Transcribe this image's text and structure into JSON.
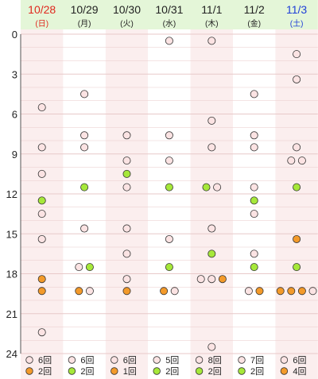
{
  "colors": {
    "header_green": "#e4f6d8",
    "col_pink": "#fbeeee",
    "col_white": "#ffffff",
    "grid_line": "#e8c9c9",
    "axis_text": "#222222",
    "day_text": "#222222",
    "sunday_text": "#e0281e",
    "saturday_text": "#1e3ed8",
    "dot_pink": "#fbe3e3",
    "dot_green": "#a6e83a",
    "dot_orange": "#f39a2a",
    "dot_stroke": "#333333"
  },
  "chart_data": {
    "type": "scatter",
    "ylim": [
      0,
      24
    ],
    "yticks": [
      "0",
      "3",
      "6",
      "9",
      "12",
      "15",
      "18",
      "21",
      "24"
    ],
    "days": [
      {
        "date": "10/28",
        "weekday": "(日)",
        "kind": "sun"
      },
      {
        "date": "10/29",
        "weekday": "(月)",
        "kind": "wd"
      },
      {
        "date": "10/30",
        "weekday": "(火)",
        "kind": "wd"
      },
      {
        "date": "10/31",
        "weekday": "(水)",
        "kind": "wd"
      },
      {
        "date": "11/1",
        "weekday": "(木)",
        "kind": "wd"
      },
      {
        "date": "11/2",
        "weekday": "(金)",
        "kind": "wd"
      },
      {
        "date": "11/3",
        "weekday": "(土)",
        "kind": "sat"
      }
    ],
    "events": [
      [
        {
          "h": 5.5,
          "t": "p"
        },
        {
          "h": 8.5,
          "t": "p"
        },
        {
          "h": 10.5,
          "t": "p"
        },
        {
          "h": 12.5,
          "t": "g"
        },
        {
          "h": 13.5,
          "t": "p"
        },
        {
          "h": 15.4,
          "t": "p"
        },
        {
          "h": 18.4,
          "t": "o"
        },
        {
          "h": 19.3,
          "t": "o"
        },
        {
          "h": 22.4,
          "t": "p"
        }
      ],
      [
        {
          "h": 4.5,
          "t": "p"
        },
        {
          "h": 7.6,
          "t": "p"
        },
        {
          "h": 8.5,
          "t": "p"
        },
        {
          "h": 11.5,
          "t": "g"
        },
        {
          "h": 14.6,
          "t": "p"
        },
        {
          "h": 17.5,
          "t": "p",
          "o": -1
        },
        {
          "h": 17.5,
          "t": "g",
          "o": 1
        },
        {
          "h": 19.3,
          "t": "o",
          "o": -1
        },
        {
          "h": 19.3,
          "t": "p",
          "o": 1
        }
      ],
      [
        {
          "h": 7.6,
          "t": "p"
        },
        {
          "h": 9.5,
          "t": "p"
        },
        {
          "h": 10.5,
          "t": "g"
        },
        {
          "h": 11.5,
          "t": "p"
        },
        {
          "h": 14.6,
          "t": "p"
        },
        {
          "h": 16.5,
          "t": "p"
        },
        {
          "h": 18.4,
          "t": "p"
        },
        {
          "h": 19.3,
          "t": "o"
        }
      ],
      [
        {
          "h": 0.5,
          "t": "p"
        },
        {
          "h": 7.6,
          "t": "p"
        },
        {
          "h": 9.5,
          "t": "p"
        },
        {
          "h": 11.5,
          "t": "g"
        },
        {
          "h": 15.4,
          "t": "p"
        },
        {
          "h": 17.5,
          "t": "g"
        },
        {
          "h": 19.3,
          "t": "o",
          "o": -1
        },
        {
          "h": 19.3,
          "t": "p",
          "o": 1
        }
      ],
      [
        {
          "h": 0.5,
          "t": "p"
        },
        {
          "h": 6.5,
          "t": "p"
        },
        {
          "h": 8.5,
          "t": "p"
        },
        {
          "h": 11.5,
          "t": "g",
          "o": -1
        },
        {
          "h": 11.5,
          "t": "p",
          "o": 1
        },
        {
          "h": 14.6,
          "t": "p"
        },
        {
          "h": 16.5,
          "t": "g"
        },
        {
          "h": 18.4,
          "t": "p",
          "o": -2
        },
        {
          "h": 18.4,
          "t": "p",
          "o": 0
        },
        {
          "h": 18.4,
          "t": "o",
          "o": 2
        },
        {
          "h": 23.5,
          "t": "p"
        }
      ],
      [
        {
          "h": 4.5,
          "t": "p"
        },
        {
          "h": 7.6,
          "t": "p"
        },
        {
          "h": 8.5,
          "t": "p"
        },
        {
          "h": 11.5,
          "t": "p"
        },
        {
          "h": 12.5,
          "t": "g"
        },
        {
          "h": 13.5,
          "t": "p"
        },
        {
          "h": 16.5,
          "t": "p"
        },
        {
          "h": 17.5,
          "t": "g"
        },
        {
          "h": 19.3,
          "t": "p",
          "o": -1
        },
        {
          "h": 19.3,
          "t": "o",
          "o": 1
        }
      ],
      [
        {
          "h": 1.5,
          "t": "p"
        },
        {
          "h": 3.4,
          "t": "p"
        },
        {
          "h": 8.5,
          "t": "p"
        },
        {
          "h": 9.5,
          "t": "p",
          "o": -1
        },
        {
          "h": 9.5,
          "t": "p",
          "o": 1
        },
        {
          "h": 11.5,
          "t": "g"
        },
        {
          "h": 15.4,
          "t": "o"
        },
        {
          "h": 17.5,
          "t": "g"
        },
        {
          "h": 19.3,
          "t": "o",
          "o": -3
        },
        {
          "h": 19.3,
          "t": "o",
          "o": -1
        },
        {
          "h": 19.3,
          "t": "o",
          "o": 1
        },
        {
          "h": 19.3,
          "t": "p",
          "o": 3
        }
      ]
    ],
    "summary": [
      [
        {
          "t": "p",
          "label": "6回"
        },
        {
          "t": "o",
          "label": "2回"
        }
      ],
      [
        {
          "t": "p",
          "label": "6回"
        },
        {
          "t": "g",
          "label": "2回"
        }
      ],
      [
        {
          "t": "p",
          "label": "6回"
        },
        {
          "t": "o",
          "label": "1回"
        }
      ],
      [
        {
          "t": "p",
          "label": "5回"
        },
        {
          "t": "g",
          "label": "2回"
        }
      ],
      [
        {
          "t": "p",
          "label": "8回"
        },
        {
          "t": "g",
          "label": "2回"
        }
      ],
      [
        {
          "t": "p",
          "label": "7回"
        },
        {
          "t": "g",
          "label": "2回"
        }
      ],
      [
        {
          "t": "p",
          "label": "6回"
        },
        {
          "t": "o",
          "label": "4回"
        }
      ]
    ]
  }
}
